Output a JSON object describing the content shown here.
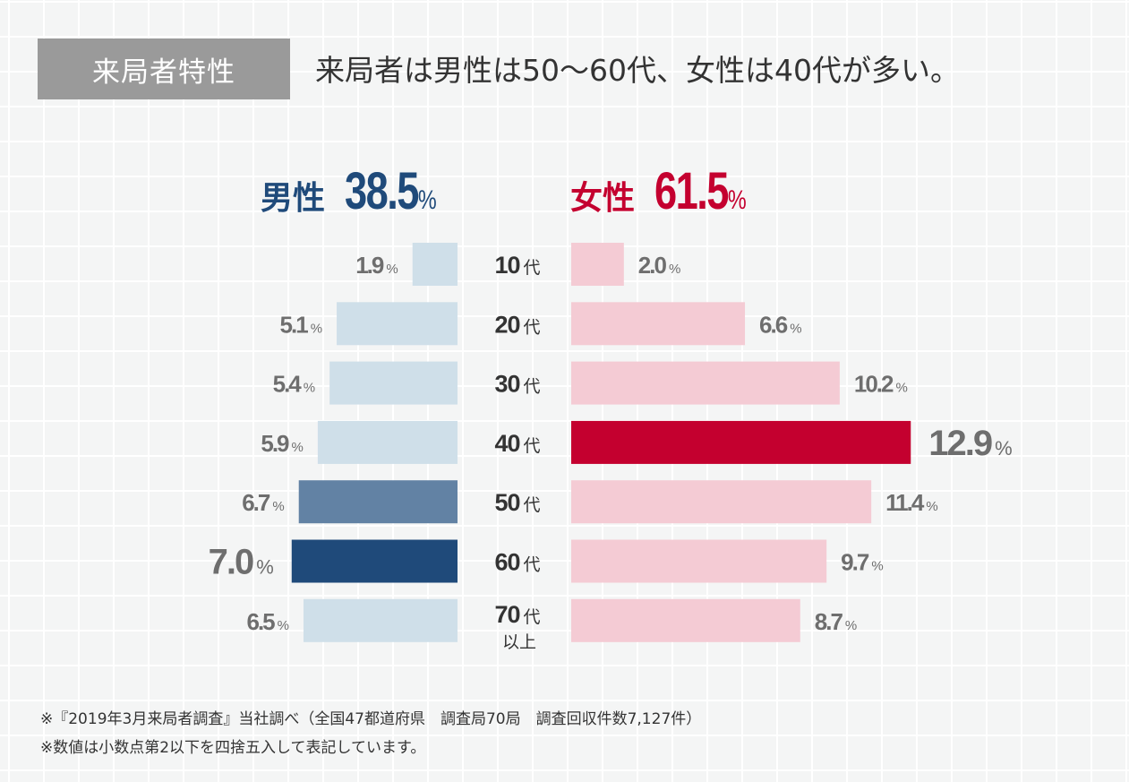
{
  "header": {
    "tag_label": "来局者特性",
    "headline": "来局者は男性は50〜60代、女性は40代が多い。"
  },
  "totals": {
    "male_label": "男性",
    "male_value": "38.5",
    "female_label": "女性",
    "female_value": "61.5",
    "percent_sign": "%"
  },
  "chart_data": {
    "type": "bar",
    "orientation": "horizontal-butterfly",
    "title": "来局者特性",
    "categories": [
      "10代",
      "20代",
      "30代",
      "40代",
      "50代",
      "60代",
      "70代以上"
    ],
    "category_labels": [
      {
        "num": "10",
        "suffix": "代",
        "sub": ""
      },
      {
        "num": "20",
        "suffix": "代",
        "sub": ""
      },
      {
        "num": "30",
        "suffix": "代",
        "sub": ""
      },
      {
        "num": "40",
        "suffix": "代",
        "sub": ""
      },
      {
        "num": "50",
        "suffix": "代",
        "sub": ""
      },
      {
        "num": "60",
        "suffix": "代",
        "sub": ""
      },
      {
        "num": "70",
        "suffix": "代",
        "sub": "以上"
      }
    ],
    "unit": "%",
    "series": [
      {
        "name": "男性",
        "total": 38.5,
        "values": [
          1.9,
          5.1,
          5.4,
          5.9,
          6.7,
          7.0,
          6.5
        ],
        "labels": [
          "1.9",
          "5.1",
          "5.4",
          "5.9",
          "6.7",
          "7.0",
          "6.5"
        ],
        "colors": [
          "#cfdfe9",
          "#cfdfe9",
          "#cfdfe9",
          "#cfdfe9",
          "#6282a4",
          "#1f4a7a",
          "#cfdfe9"
        ],
        "highlight_index": 5,
        "highlight_label_color": "#1f4a7a"
      },
      {
        "name": "女性",
        "total": 61.5,
        "values": [
          2.0,
          6.6,
          10.2,
          12.9,
          11.4,
          9.7,
          8.7
        ],
        "labels": [
          "2.0",
          "6.6",
          "10.2",
          "12.9",
          "11.4",
          "9.7",
          "8.7"
        ],
        "colors": [
          "#f4cbd4",
          "#f4cbd4",
          "#f4cbd4",
          "#c4002f",
          "#f4cbd4",
          "#f4cbd4",
          "#f4cbd4"
        ],
        "highlight_index": 3,
        "highlight_label_color": "#c4002f"
      }
    ],
    "xlim": [
      0,
      13
    ],
    "grid": false,
    "legend": "none"
  },
  "colors": {
    "male": "#1f4a7a",
    "female": "#c4002f",
    "label_gray": "#6e6e6e",
    "category_text": "#333333"
  },
  "footnotes": [
    "※『2019年3月来局者調査』当社調べ（全国47都道府県　調査局70局　調査回収件数7,127件）",
    "※数値は小数点第2以下を四捨五入して表記しています。"
  ]
}
